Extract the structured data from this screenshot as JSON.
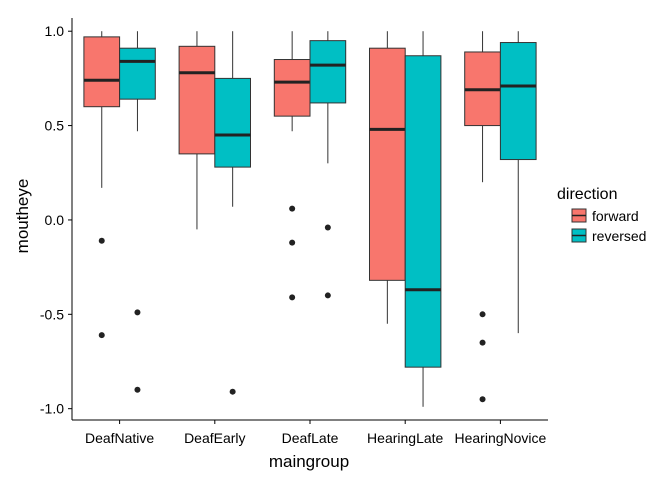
{
  "chart_data": {
    "type": "boxplot",
    "xlabel": "maingroup",
    "ylabel": "moutheye",
    "categories": [
      "DeafNative",
      "DeafEarly",
      "DeafLate",
      "HearingLate",
      "HearingNovice"
    ],
    "ylim": [
      -1.06,
      1.07
    ],
    "yticks": [
      -1.0,
      -0.5,
      0.0,
      0.5,
      1.0
    ],
    "ytick_labels": [
      "-1.0",
      "-0.5",
      "0.0",
      "0.5",
      "1.0"
    ],
    "grid": false,
    "legend": {
      "title": "direction",
      "position": "right",
      "entries": [
        "forward",
        "reversed"
      ]
    },
    "series": [
      {
        "name": "forward",
        "color": "#F8766D",
        "boxes": [
          {
            "whisker_low": 0.17,
            "q1": 0.6,
            "median": 0.74,
            "q3": 0.97,
            "whisker_high": 1.0,
            "outliers": [
              -0.11,
              -0.61
            ]
          },
          {
            "whisker_low": -0.05,
            "q1": 0.35,
            "median": 0.78,
            "q3": 0.92,
            "whisker_high": 1.0,
            "outliers": []
          },
          {
            "whisker_low": 0.47,
            "q1": 0.55,
            "median": 0.73,
            "q3": 0.85,
            "whisker_high": 1.0,
            "outliers": [
              0.06,
              -0.12,
              -0.41
            ]
          },
          {
            "whisker_low": -0.55,
            "q1": -0.32,
            "median": 0.48,
            "q3": 0.91,
            "whisker_high": 1.0,
            "outliers": []
          },
          {
            "whisker_low": 0.2,
            "q1": 0.5,
            "median": 0.69,
            "q3": 0.89,
            "whisker_high": 1.0,
            "outliers": [
              -0.5,
              -0.65,
              -0.95
            ]
          }
        ]
      },
      {
        "name": "reversed",
        "color": "#00BFC4",
        "boxes": [
          {
            "whisker_low": 0.47,
            "q1": 0.64,
            "median": 0.84,
            "q3": 0.91,
            "whisker_high": 1.0,
            "outliers": [
              -0.49,
              -0.9
            ]
          },
          {
            "whisker_low": 0.07,
            "q1": 0.28,
            "median": 0.45,
            "q3": 0.75,
            "whisker_high": 1.0,
            "outliers": [
              -0.91
            ]
          },
          {
            "whisker_low": 0.3,
            "q1": 0.62,
            "median": 0.82,
            "q3": 0.95,
            "whisker_high": 1.0,
            "outliers": [
              -0.04,
              -0.4
            ]
          },
          {
            "whisker_low": -0.99,
            "q1": -0.78,
            "median": -0.37,
            "q3": 0.87,
            "whisker_high": 1.0,
            "outliers": []
          },
          {
            "whisker_low": -0.6,
            "q1": 0.32,
            "median": 0.71,
            "q3": 0.94,
            "whisker_high": 1.0,
            "outliers": []
          }
        ]
      }
    ]
  }
}
